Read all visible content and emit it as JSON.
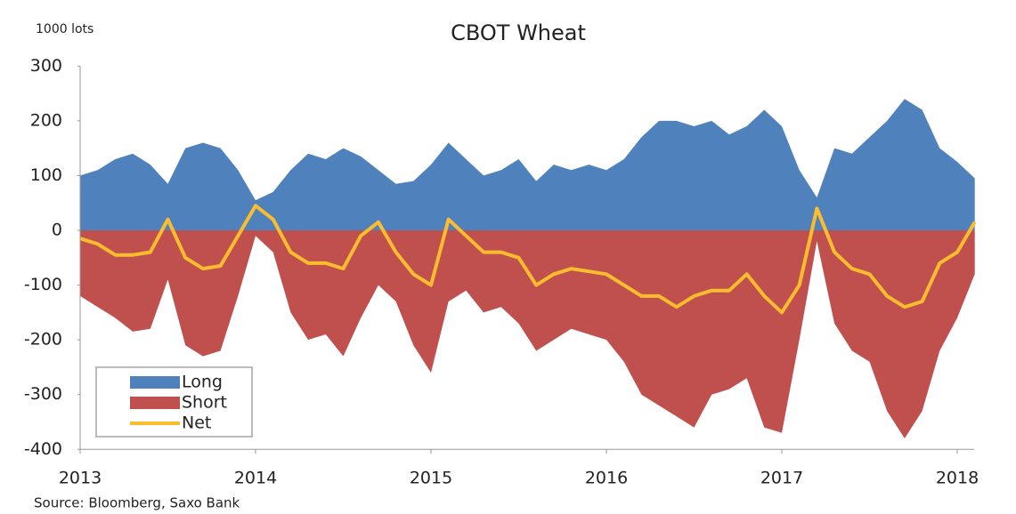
{
  "chart_data": {
    "type": "area",
    "title": "CBOT Wheat",
    "ylabel": "1000 lots",
    "source": "Source: Bloomberg,  Saxo Bank",
    "x": [
      2013.0,
      2013.1,
      2013.2,
      2013.3,
      2013.4,
      2013.5,
      2013.6,
      2013.7,
      2013.8,
      2013.9,
      2014.0,
      2014.1,
      2014.2,
      2014.3,
      2014.4,
      2014.5,
      2014.6,
      2014.7,
      2014.8,
      2014.9,
      2015.0,
      2015.1,
      2015.2,
      2015.3,
      2015.4,
      2015.5,
      2015.6,
      2015.7,
      2015.8,
      2015.9,
      2016.0,
      2016.1,
      2016.2,
      2016.3,
      2016.4,
      2016.5,
      2016.6,
      2016.7,
      2016.8,
      2016.9,
      2017.0,
      2017.1,
      2017.2,
      2017.3,
      2017.4,
      2017.5,
      2017.6,
      2017.7,
      2017.8,
      2017.9,
      2018.0,
      2018.1
    ],
    "series": [
      {
        "name": "Long",
        "color": "#4f81bd",
        "values": [
          100,
          110,
          130,
          140,
          120,
          85,
          150,
          160,
          150,
          110,
          55,
          70,
          110,
          140,
          130,
          150,
          135,
          110,
          85,
          90,
          120,
          160,
          130,
          100,
          110,
          130,
          90,
          120,
          110,
          120,
          110,
          130,
          170,
          200,
          200,
          190,
          200,
          175,
          190,
          220,
          190,
          110,
          60,
          150,
          140,
          170,
          200,
          240,
          220,
          150,
          125,
          95
        ]
      },
      {
        "name": "Short",
        "color": "#c0504d",
        "values": [
          -120,
          -140,
          -160,
          -185,
          -180,
          -90,
          -210,
          -230,
          -220,
          -120,
          -10,
          -40,
          -150,
          -200,
          -190,
          -230,
          -160,
          -100,
          -130,
          -210,
          -260,
          -130,
          -110,
          -150,
          -140,
          -170,
          -220,
          -200,
          -180,
          -190,
          -200,
          -240,
          -300,
          -320,
          -340,
          -360,
          -300,
          -290,
          -270,
          -360,
          -370,
          -200,
          -20,
          -170,
          -220,
          -240,
          -330,
          -380,
          -330,
          -220,
          -160,
          -80
        ]
      },
      {
        "name": "Net",
        "color": "#fbbd2e",
        "values": [
          -15,
          -25,
          -45,
          -45,
          -40,
          20,
          -50,
          -70,
          -65,
          -10,
          45,
          20,
          -40,
          -60,
          -60,
          -70,
          -10,
          15,
          -40,
          -80,
          -100,
          20,
          -10,
          -40,
          -40,
          -50,
          -100,
          -80,
          -70,
          -75,
          -80,
          -100,
          -120,
          -120,
          -140,
          -120,
          -110,
          -110,
          -80,
          -120,
          -150,
          -100,
          40,
          -40,
          -70,
          -80,
          -120,
          -140,
          -130,
          -60,
          -40,
          15
        ]
      }
    ],
    "xlim": [
      2013,
      2018.1
    ],
    "xticks": [
      2013,
      2014,
      2015,
      2016,
      2017,
      2018
    ],
    "ylim": [
      -400,
      300
    ],
    "yticks": [
      300,
      200,
      100,
      0,
      -100,
      -200,
      -300,
      -400
    ],
    "legend": "lower left"
  }
}
